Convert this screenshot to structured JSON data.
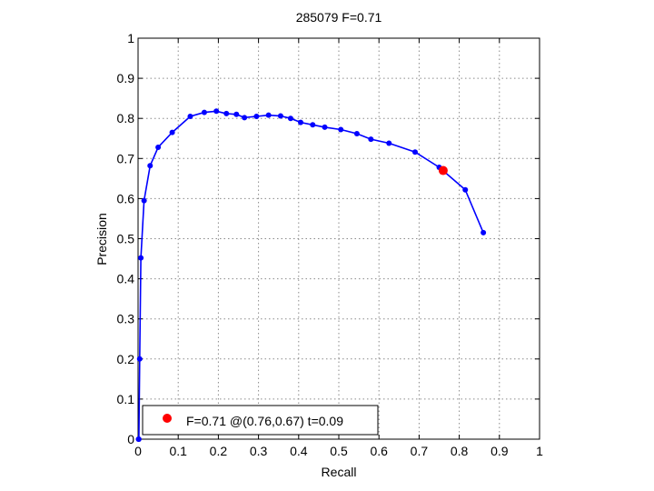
{
  "chart_data": {
    "type": "line",
    "title": "285079 F=0.71",
    "xlabel": "Recall",
    "ylabel": "Precision",
    "xlim": [
      0,
      1
    ],
    "ylim": [
      0,
      1
    ],
    "xticks": [
      "0",
      "0.1",
      "0.2",
      "0.3",
      "0.4",
      "0.5",
      "0.6",
      "0.7",
      "0.8",
      "0.9",
      "1"
    ],
    "yticks": [
      "0",
      "0.1",
      "0.2",
      "0.3",
      "0.4",
      "0.5",
      "0.6",
      "0.7",
      "0.8",
      "0.9",
      "1"
    ],
    "grid": true,
    "series": [
      {
        "color": "#0000ff",
        "marker": "dot",
        "x": [
          0.86,
          0.815,
          0.75,
          0.69,
          0.625,
          0.58,
          0.545,
          0.505,
          0.465,
          0.435,
          0.405,
          0.38,
          0.355,
          0.325,
          0.295,
          0.265,
          0.245,
          0.22,
          0.195,
          0.165,
          0.13,
          0.085,
          0.05,
          0.03,
          0.015,
          0.007,
          0.004,
          0.002,
          0.001
        ],
        "y": [
          0.515,
          0.622,
          0.678,
          0.716,
          0.738,
          0.748,
          0.762,
          0.772,
          0.778,
          0.784,
          0.79,
          0.8,
          0.806,
          0.808,
          0.805,
          0.802,
          0.81,
          0.812,
          0.818,
          0.815,
          0.805,
          0.765,
          0.728,
          0.682,
          0.595,
          0.452,
          0.2,
          0.0,
          0.0
        ]
      }
    ],
    "highlight": {
      "x": 0.76,
      "y": 0.67,
      "color": "#ff0000"
    },
    "legend": {
      "position": "bottom-left",
      "entries": [
        "F=0.71 @(0.76,0.67) t=0.09"
      ]
    }
  }
}
